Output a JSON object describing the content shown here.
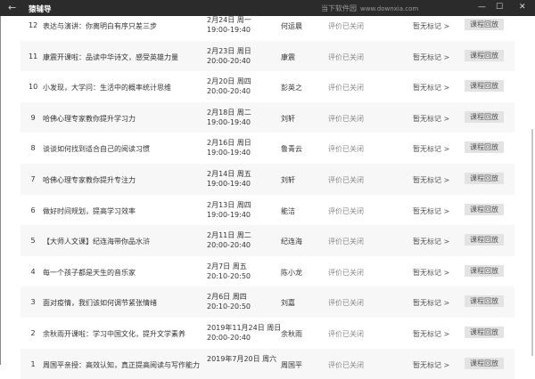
{
  "app": {
    "title": "猿辅导",
    "back": "←",
    "minimize": "—",
    "maximize": "☐",
    "close": "✕"
  },
  "rows": [
    {
      "num": "12",
      "title": "表达与演讲：你离明白有序只差三步",
      "date": "2月24日 周一",
      "time": "19:00-19:40",
      "teacher": "何运晨",
      "eval": "评价已关闭",
      "mark": "暂无标记 >",
      "button": "课程回放"
    },
    {
      "num": "11",
      "title": "康震开课啦：品读中华诗文，感受英雄力量",
      "date": "2月23日 周日",
      "time": "20:00-20:40",
      "teacher": "康震",
      "eval": "评价已关闭",
      "mark": "暂无标记 >",
      "button": "课程回放"
    },
    {
      "num": "10",
      "title": "小发现，大学问：生活中的概率统计思维",
      "date": "2月20日 周四",
      "time": "20:00-20:40",
      "teacher": "彭英之",
      "eval": "评价已关闭",
      "mark": "暂无标记 >",
      "button": "课程回放"
    },
    {
      "num": "9",
      "title": "哈佛心理专家教你提升学习力",
      "date": "2月18日 周二",
      "time": "19:00-19:40",
      "teacher": "刘轩",
      "eval": "评价已关闭",
      "mark": "暂无标记 >",
      "button": "课程回放"
    },
    {
      "num": "8",
      "title": "谈谈如何找到适合自己的阅读习惯",
      "date": "2月16日 周日",
      "time": "19:00-19:40",
      "teacher": "鲁青云",
      "eval": "评价已关闭",
      "mark": "暂无标记 >",
      "button": "课程回放"
    },
    {
      "num": "7",
      "title": "哈佛心理专家教你提升专注力",
      "date": "2月14日 周五",
      "time": "19:00-19:40",
      "teacher": "刘轩",
      "eval": "评价已关闭",
      "mark": "暂无标记 >",
      "button": "课程回放"
    },
    {
      "num": "6",
      "title": "做好时间规划，提高学习效率",
      "date": "2月13日 周四",
      "time": "19:00-19:40",
      "teacher": "能洁",
      "eval": "评价已关闭",
      "mark": "暂无标记 >",
      "button": "课程回放"
    },
    {
      "num": "5",
      "title": "【大师人文课】纪连海带你品水浒",
      "date": "2月11日 周二",
      "time": "20:00-20:40",
      "teacher": "纪连海",
      "eval": "评价已关闭",
      "mark": "暂无标记 >",
      "button": "课程回放"
    },
    {
      "num": "4",
      "title": "每一个孩子都是天生的音乐家",
      "date": "2月7日 周五",
      "time": "20:10-20:50",
      "teacher": "陈小龙",
      "eval": "评价已关闭",
      "mark": "暂无标记 >",
      "button": "课程回放"
    },
    {
      "num": "3",
      "title": "面对疫情，我们该如何调节紧张情绪",
      "date": "2月6日 周四",
      "time": "20:10-20:50",
      "teacher": "刘嘉",
      "eval": "评价已关闭",
      "mark": "暂无标记 >",
      "button": "课程回放"
    },
    {
      "num": "2",
      "title": "余秋雨开课啦：学习中国文化，提升文学素养",
      "date": "2019年11月24日 周日",
      "time": "20:00-20:40",
      "teacher": "余秋雨",
      "eval": "评价已关闭",
      "mark": "暂无标记 >",
      "button": "课程回放"
    },
    {
      "num": "1",
      "title": "周国平亲授：高效认知，真正提高阅读与写作能力",
      "date": "2019年7月20日 周六",
      "time": "",
      "teacher": "周国平",
      "eval": "评价已关闭",
      "mark": "暂无标记 >",
      "button": "课程回放"
    }
  ],
  "watermark": {
    "text": "当下软件园",
    "url": "www.downxia.com"
  }
}
